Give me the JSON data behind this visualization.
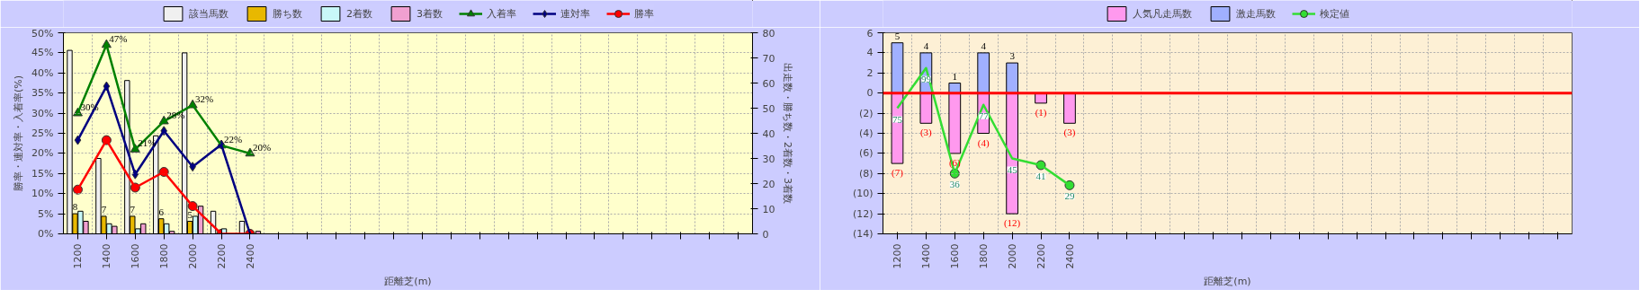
{
  "chart_data": [
    {
      "type": "bar",
      "xlabel": "距離芝(m)",
      "ylabel": "勝率・連対率・入着率(%)",
      "y2label": "出走数・勝ち数・2着数・3着数",
      "categories": [
        "1200",
        "1400",
        "1600",
        "1800",
        "2000",
        "2200",
        "2400",
        null,
        null,
        null,
        null,
        null,
        null,
        null,
        null,
        null,
        null,
        null,
        null,
        null,
        null,
        null,
        null,
        null
      ],
      "ylim": [
        0,
        50
      ],
      "yticks": [
        {
          "value": 0,
          "label": "0%"
        },
        {
          "value": 5,
          "label": "5%"
        },
        {
          "value": 10,
          "label": "10%"
        },
        {
          "value": 15,
          "label": "15%"
        },
        {
          "value": 20,
          "label": "20%"
        },
        {
          "value": 25,
          "label": "25%"
        },
        {
          "value": 30,
          "label": "30%"
        },
        {
          "value": 35,
          "label": "35%"
        },
        {
          "value": 40,
          "label": "40%"
        },
        {
          "value": 45,
          "label": "45%"
        },
        {
          "value": 50,
          "label": "50%"
        }
      ],
      "y2lim": [
        0,
        80
      ],
      "y2ticks": [
        0,
        10,
        20,
        30,
        40,
        50,
        60,
        70,
        80
      ],
      "grid": true,
      "legend": "top",
      "series": [
        {
          "name": "該当馬数",
          "color": "#f0f0f0",
          "axis": "y2",
          "values": [
            73,
            30,
            61,
            39,
            72,
            9,
            5,
            null,
            null,
            null,
            null,
            null,
            null,
            null,
            null,
            null,
            null,
            null,
            null,
            null,
            null,
            null,
            null,
            null
          ]
        },
        {
          "name": "勝ち数",
          "color": "#e8b800",
          "axis": "y2",
          "values": [
            8,
            7,
            7,
            6,
            5,
            0,
            0,
            null,
            null,
            null,
            null,
            null,
            null,
            null,
            null,
            null,
            null,
            null,
            null,
            null,
            null,
            null,
            null,
            null
          ],
          "value_labels": [
            "8",
            "7",
            "7",
            "6",
            "5",
            null,
            null,
            null,
            null,
            null,
            null,
            null,
            null,
            null,
            null,
            null,
            null,
            null,
            null,
            null,
            null,
            null,
            null,
            null
          ]
        },
        {
          "name": "2着数",
          "color": "#c8f8f8",
          "axis": "y2",
          "values": [
            9,
            4,
            2,
            4,
            7,
            2,
            0,
            null,
            null,
            null,
            null,
            null,
            null,
            null,
            null,
            null,
            null,
            null,
            null,
            null,
            null,
            null,
            null,
            null
          ]
        },
        {
          "name": "3着数",
          "color": "#f0a0d0",
          "axis": "y2",
          "values": [
            5,
            3,
            4,
            1,
            11,
            0,
            1,
            null,
            null,
            null,
            null,
            null,
            null,
            null,
            null,
            null,
            null,
            null,
            null,
            null,
            null,
            null,
            null,
            null
          ]
        },
        {
          "name": "入着率",
          "type": "line",
          "color": "#008000",
          "marker": "triangle",
          "values": [
            30,
            47,
            21,
            28,
            32,
            22,
            20,
            null,
            null,
            null,
            null,
            null,
            null,
            null,
            null,
            null,
            null,
            null,
            null,
            null,
            null,
            null,
            null,
            null
          ],
          "value_labels": [
            "30%",
            "47%",
            "21%",
            "28%",
            "32%",
            "22%",
            "20%",
            null,
            null,
            null,
            null,
            null,
            null,
            null,
            null,
            null,
            null,
            null,
            null,
            null,
            null,
            null,
            null,
            null
          ]
        },
        {
          "name": "連対率",
          "type": "line",
          "color": "#000080",
          "marker": "diamond",
          "values": [
            23.3,
            36.7,
            14.8,
            25.6,
            16.7,
            22.2,
            0,
            null,
            null,
            null,
            null,
            null,
            null,
            null,
            null,
            null,
            null,
            null,
            null,
            null,
            null,
            null,
            null,
            null
          ]
        },
        {
          "name": "勝率",
          "type": "line",
          "color": "#ff0000",
          "marker": "circle",
          "values": [
            11,
            23.3,
            11.5,
            15.4,
            6.9,
            0,
            0,
            null,
            null,
            null,
            null,
            null,
            null,
            null,
            null,
            null,
            null,
            null,
            null,
            null,
            null,
            null,
            null,
            null
          ]
        }
      ]
    },
    {
      "type": "bar",
      "xlabel": "距離芝(m)",
      "stacked": true,
      "categories": [
        "1200",
        "1400",
        "1600",
        "1800",
        "2000",
        "2200",
        "2400",
        null,
        null,
        null,
        null,
        null,
        null,
        null,
        null,
        null,
        null,
        null,
        null,
        null,
        null,
        null,
        null,
        null
      ],
      "ylim": [
        -14,
        6
      ],
      "yticks": [
        6,
        4,
        2,
        0,
        {
          "value": -2,
          "label": "(2)"
        },
        {
          "value": -4,
          "label": "(4)"
        },
        {
          "value": -6,
          "label": "(6)"
        },
        {
          "value": -8,
          "label": "(8)"
        },
        {
          "value": -10,
          "label": "(10)"
        },
        {
          "value": -12,
          "label": "(12)"
        },
        {
          "value": -14,
          "label": "(14)"
        }
      ],
      "y2lim": [
        0,
        120
      ],
      "grid": true,
      "legend": "top",
      "ref_lines": [
        {
          "axis": "y",
          "value": 0,
          "color": "#ff0000"
        }
      ],
      "series": [
        {
          "name": "人気凡走馬数",
          "color": "#ff99ee",
          "values": [
            -7,
            -3,
            -6,
            -4,
            -12,
            -1,
            -3,
            null,
            null,
            null,
            null,
            null,
            null,
            null,
            null,
            null,
            null,
            null,
            null,
            null,
            null,
            null,
            null,
            null
          ],
          "value_labels": [
            "(7)",
            "(3)",
            "(6)",
            "(4)",
            "(12)",
            "(1)",
            "(3)",
            null,
            null,
            null,
            null,
            null,
            null,
            null,
            null,
            null,
            null,
            null,
            null,
            null,
            null,
            null,
            null,
            null
          ]
        },
        {
          "name": "激走馬数",
          "color": "#a0b0ff",
          "values": [
            5,
            4,
            1,
            4,
            3,
            0,
            0,
            null,
            null,
            null,
            null,
            null,
            null,
            null,
            null,
            null,
            null,
            null,
            null,
            null,
            null,
            null,
            null,
            null
          ],
          "value_labels": [
            "5",
            "4",
            "1",
            "4",
            "3",
            null,
            null,
            null,
            null,
            null,
            null,
            null,
            null,
            null,
            null,
            null,
            null,
            null,
            null,
            null,
            null,
            null,
            null,
            null
          ]
        },
        {
          "name": "検定値",
          "type": "line",
          "axis": "y2",
          "color": "#33dd33",
          "marker": "circle",
          "values": [
            75,
            99,
            36,
            77,
            45,
            41,
            29,
            null,
            null,
            null,
            null,
            null,
            null,
            null,
            null,
            null,
            null,
            null,
            null,
            null,
            null,
            null,
            null,
            null
          ],
          "value_labels": [
            "75",
            "99",
            "36",
            "77",
            "45",
            "41",
            "29",
            null,
            null,
            null,
            null,
            null,
            null,
            null,
            null,
            null,
            null,
            null,
            null,
            null,
            null,
            null,
            null,
            null
          ]
        }
      ]
    }
  ]
}
